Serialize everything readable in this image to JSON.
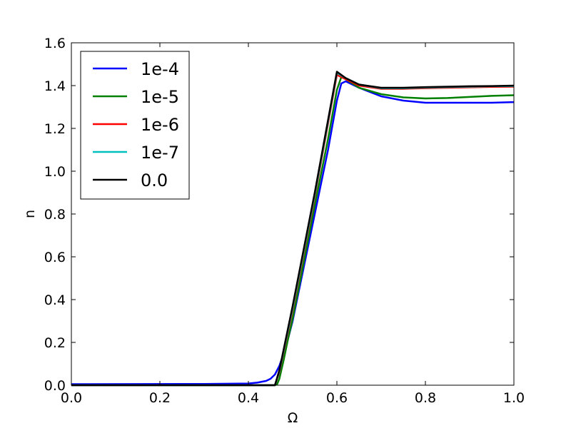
{
  "chart_data": {
    "type": "line",
    "title": "",
    "xlabel": "Ω",
    "ylabel": "n",
    "xlim": [
      0.0,
      1.0
    ],
    "ylim": [
      0.0,
      1.6
    ],
    "xticks": [
      "0.0",
      "0.2",
      "0.4",
      "0.6",
      "0.8",
      "1.0"
    ],
    "yticks": [
      "0.0",
      "0.2",
      "0.4",
      "0.6",
      "0.8",
      "1.0",
      "1.2",
      "1.4",
      "1.6"
    ],
    "grid": false,
    "legend_position": "top-left",
    "series": [
      {
        "name": "1e-4",
        "color": "#0000ff",
        "x": [
          0.0,
          0.3,
          0.4,
          0.42,
          0.44,
          0.45,
          0.46,
          0.47,
          0.48,
          0.49,
          0.5,
          0.52,
          0.55,
          0.58,
          0.6,
          0.61,
          0.62,
          0.65,
          0.7,
          0.75,
          0.8,
          0.85,
          0.9,
          0.95,
          1.0
        ],
        "y": [
          0.005,
          0.006,
          0.008,
          0.012,
          0.02,
          0.03,
          0.05,
          0.09,
          0.15,
          0.22,
          0.3,
          0.5,
          0.8,
          1.1,
          1.33,
          1.41,
          1.42,
          1.39,
          1.35,
          1.33,
          1.32,
          1.32,
          1.32,
          1.32,
          1.323
        ]
      },
      {
        "name": "1e-5",
        "color": "#008000",
        "x": [
          0.0,
          0.46,
          0.465,
          0.47,
          0.48,
          0.49,
          0.5,
          0.52,
          0.55,
          0.58,
          0.6,
          0.61,
          0.62,
          0.65,
          0.7,
          0.75,
          0.8,
          0.85,
          0.9,
          0.95,
          1.0
        ],
        "y": [
          0.0,
          0.0,
          0.005,
          0.03,
          0.12,
          0.22,
          0.31,
          0.52,
          0.84,
          1.15,
          1.38,
          1.44,
          1.43,
          1.39,
          1.36,
          1.345,
          1.34,
          1.342,
          1.347,
          1.352,
          1.355
        ]
      },
      {
        "name": "1e-6",
        "color": "#ff0000",
        "x": [
          0.0,
          0.46,
          0.47,
          0.5,
          0.55,
          0.6,
          0.62,
          0.65,
          0.7,
          0.75,
          0.8,
          0.85,
          0.9,
          0.95,
          1.0
        ],
        "y": [
          0.0,
          0.0,
          0.06,
          0.35,
          0.88,
          1.45,
          1.43,
          1.4,
          1.385,
          1.385,
          1.388,
          1.39,
          1.392,
          1.394,
          1.395
        ]
      },
      {
        "name": "1e-7",
        "color": "#00bfbf",
        "x": [
          0.0,
          0.46,
          0.47,
          0.5,
          0.55,
          0.6,
          0.62,
          0.65,
          0.7,
          0.75,
          0.8,
          0.85,
          0.9,
          0.95,
          1.0
        ],
        "y": [
          0.0,
          0.0,
          0.065,
          0.36,
          0.89,
          1.46,
          1.435,
          1.405,
          1.388,
          1.388,
          1.391,
          1.393,
          1.395,
          1.397,
          1.398
        ]
      },
      {
        "name": "0.0",
        "color": "#000000",
        "x": [
          0.0,
          0.46,
          0.47,
          0.5,
          0.55,
          0.6,
          0.61,
          0.62,
          0.65,
          0.7,
          0.75,
          0.8,
          0.85,
          0.9,
          0.95,
          1.0
        ],
        "y": [
          0.0,
          0.0,
          0.07,
          0.37,
          0.9,
          1.465,
          1.45,
          1.435,
          1.405,
          1.39,
          1.39,
          1.393,
          1.395,
          1.397,
          1.398,
          1.4
        ]
      }
    ]
  }
}
